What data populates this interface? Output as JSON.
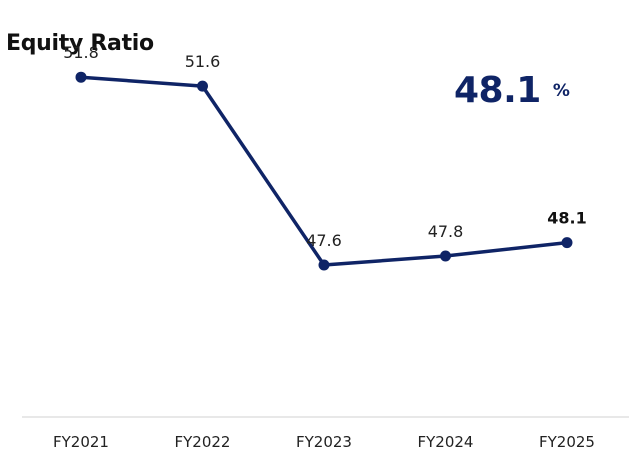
{
  "headline": {
    "value": "48.1",
    "unit": "%"
  },
  "colors": {
    "series": "#0f2466",
    "axis": "#d0d0d0",
    "text": "#222222"
  },
  "chart_data": {
    "type": "line",
    "title": "Equity Ratio",
    "categories": [
      "FY2021",
      "FY2022",
      "FY2023",
      "FY2024",
      "FY2025"
    ],
    "values": [
      51.8,
      51.6,
      47.6,
      47.8,
      48.1
    ],
    "data_labels": [
      "51.8",
      "51.6",
      "47.6",
      "47.8",
      "48.1"
    ],
    "emphasized_index": 4,
    "ylim": [
      44.2,
      52.9
    ],
    "grid": false,
    "legend": "none"
  }
}
